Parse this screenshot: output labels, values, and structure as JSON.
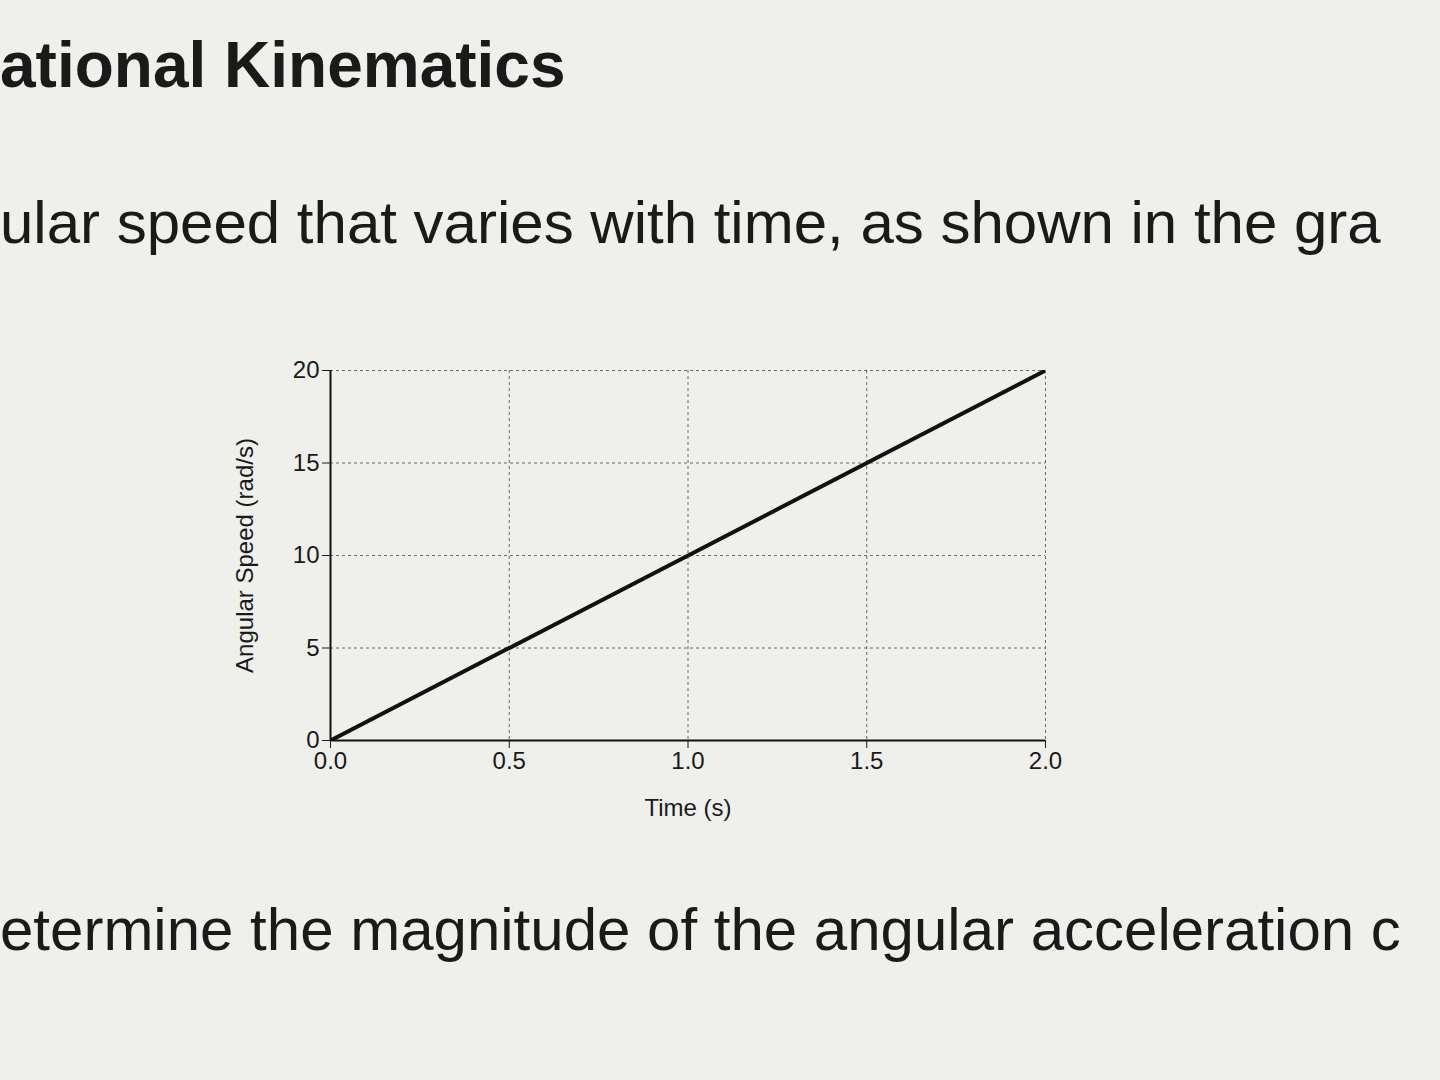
{
  "chart_data": {
    "type": "line",
    "title": "ational Kinematics",
    "subtitle": "ular speed that varies with time, as shown in the gra",
    "annotations": [
      "etermine the magnitude of the angular acceleration c"
    ],
    "x_label": "Time (s)",
    "y_label": "Angular Speed (rad/s)",
    "x": [
      0.0,
      2.0
    ],
    "values": [
      0,
      20
    ],
    "color": "#111111",
    "xlim": [
      0,
      2.0
    ],
    "xticks": [
      {
        "value": 0,
        "label": "0.0"
      },
      0.5,
      {
        "value": 1,
        "label": "1.0"
      },
      1.5,
      {
        "value": 2,
        "label": "2.0"
      }
    ],
    "ylim": [
      0,
      20
    ],
    "yticks": [
      0,
      5,
      10,
      15,
      20
    ],
    "grid": true
  }
}
